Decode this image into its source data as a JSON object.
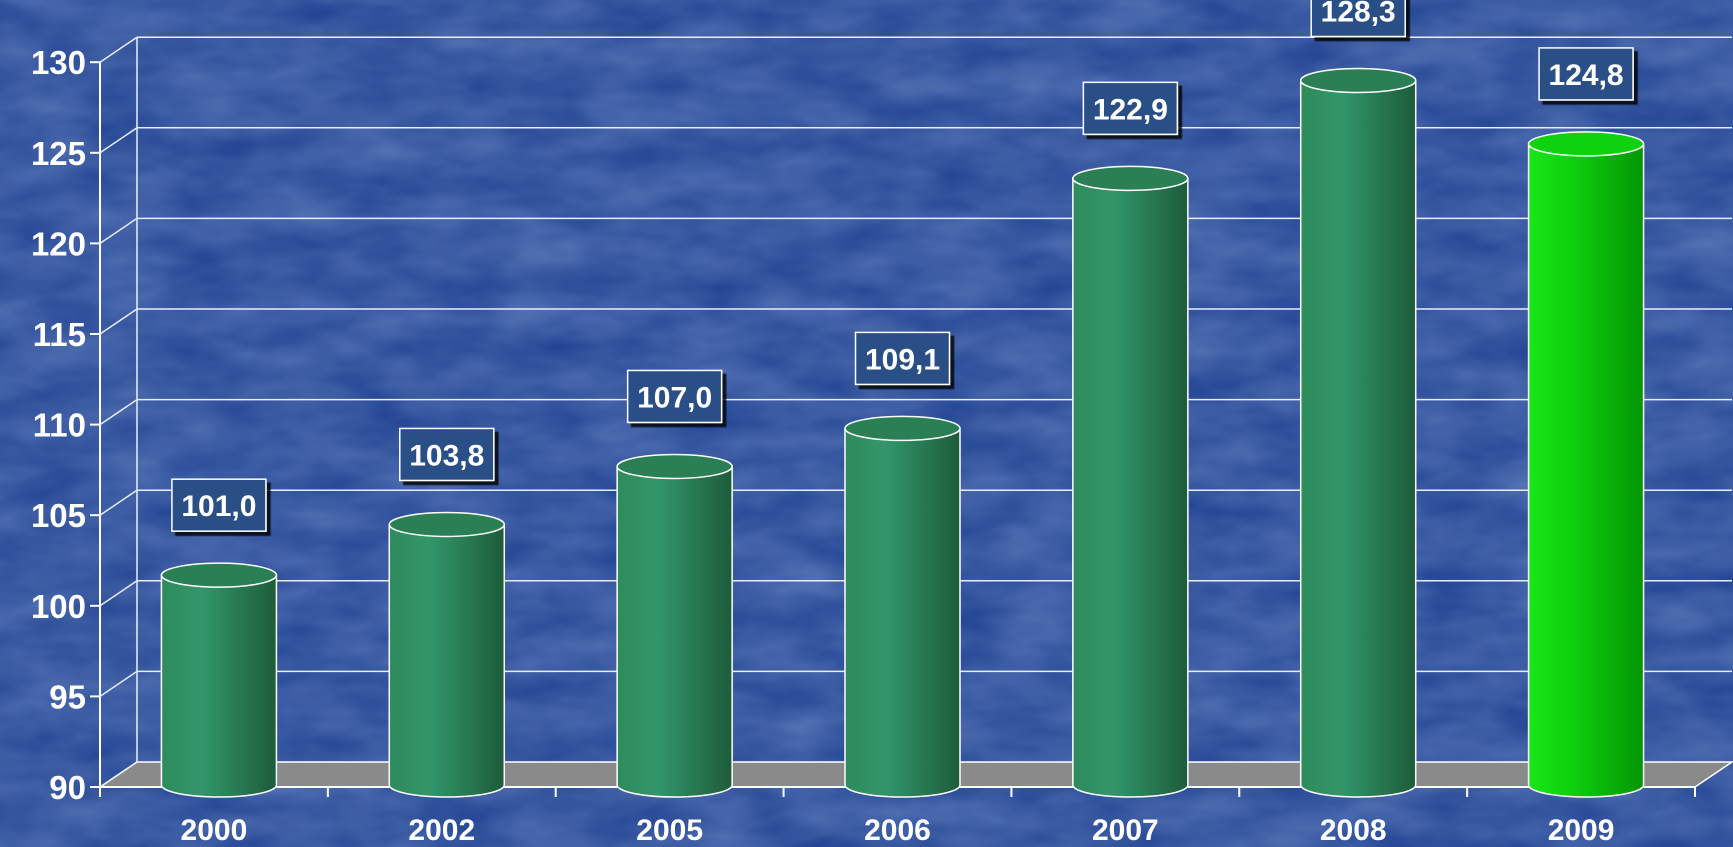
{
  "chart_data": {
    "type": "bar",
    "title": "",
    "xlabel": "",
    "ylabel": "",
    "categories": [
      "2000",
      "2002",
      "2005",
      "2006",
      "2007",
      "2008",
      "2009"
    ],
    "values": [
      101.0,
      103.8,
      107.0,
      109.1,
      122.9,
      128.3,
      124.8
    ],
    "data_labels": [
      "101,0",
      "103,8",
      "107,0",
      "109,1",
      "122,9",
      "128,3",
      "124,8"
    ],
    "ylim": [
      90,
      130
    ],
    "yticks": [
      90,
      95,
      100,
      105,
      110,
      115,
      120,
      125,
      130
    ],
    "grid": true,
    "bar_style": "3d-cylinder",
    "colors": {
      "background": "#1d3f8f",
      "bar": "#2e8b5c",
      "highlight_bar": "#0ed20e",
      "floor": "#8a8a8a",
      "label_box": "#2c4f86",
      "grid": "#e8eefc",
      "text": "#ffffff"
    },
    "highlight_category": "2009"
  }
}
